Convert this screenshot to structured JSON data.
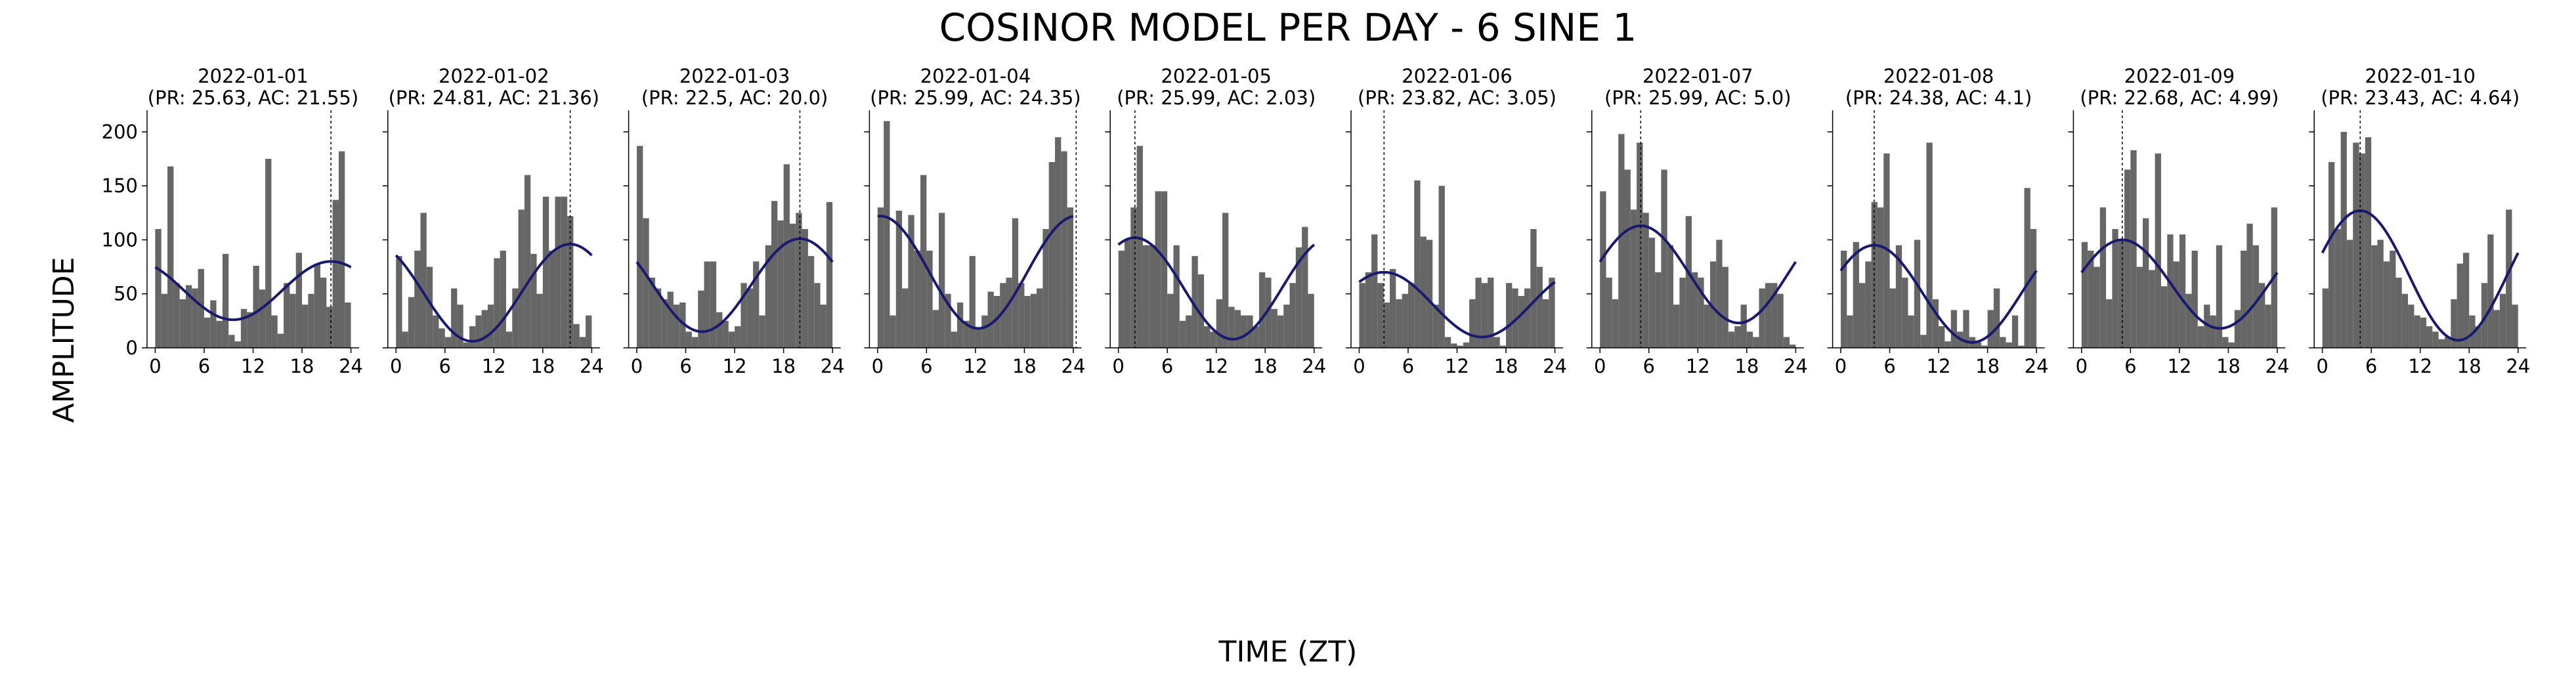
{
  "figure": {
    "title": "COSINOR MODEL PER DAY - 6 SINE 1",
    "xlabel": "TIME (ZT)",
    "ylabel": "AMPLITUDE"
  },
  "colors": {
    "bar": "#666666",
    "curve": "#191970",
    "axis": "#000000"
  },
  "chart_data": {
    "type": "bar",
    "bar_width_hours": 0.75,
    "xlim": [
      -1,
      25
    ],
    "ylim": [
      0,
      220
    ],
    "xticks": [
      0,
      6,
      12,
      18,
      24
    ],
    "yticks": [
      0,
      50,
      100,
      150,
      200
    ],
    "panels": [
      {
        "date": "2022-01-01",
        "subtitle": "(PR: 25.63, AC: 21.55)",
        "acrophase": 21.55,
        "mesor": 53,
        "amplitude": 27,
        "values": [
          110,
          50,
          168,
          60,
          45,
          58,
          55,
          73,
          28,
          44,
          25,
          87,
          12,
          6,
          36,
          33,
          76,
          54,
          175,
          30,
          13,
          60,
          50,
          88,
          40,
          50,
          78,
          65,
          38,
          137,
          182,
          42
        ]
      },
      {
        "date": "2022-01-02",
        "subtitle": "(PR: 24.81, AC: 21.36)",
        "acrophase": 21.36,
        "mesor": 51,
        "amplitude": 45,
        "values": [
          85,
          15,
          47,
          90,
          125,
          75,
          30,
          18,
          10,
          55,
          40,
          5,
          20,
          30,
          35,
          40,
          83,
          90,
          15,
          55,
          128,
          160,
          87,
          50,
          140,
          90,
          140,
          140,
          122,
          22,
          10,
          30
        ]
      },
      {
        "date": "2022-01-03",
        "subtitle": "(PR: 22.5, AC: 20.0)",
        "acrophase": 20.0,
        "mesor": 58,
        "amplitude": 43,
        "values": [
          187,
          120,
          65,
          55,
          45,
          52,
          40,
          42,
          15,
          10,
          53,
          80,
          80,
          33,
          25,
          15,
          20,
          60,
          55,
          80,
          30,
          95,
          136,
          118,
          170,
          115,
          125,
          110,
          85,
          60,
          40,
          135
        ]
      },
      {
        "date": "2022-01-04",
        "subtitle": "(PR: 25.99, AC: 24.35)",
        "acrophase": 24.35,
        "mesor": 70,
        "amplitude": 52,
        "values": [
          130,
          210,
          30,
          127,
          55,
          123,
          90,
          160,
          90,
          35,
          125,
          50,
          15,
          42,
          25,
          85,
          18,
          30,
          52,
          48,
          60,
          65,
          120,
          60,
          48,
          50,
          55,
          110,
          172,
          195,
          182,
          130
        ]
      },
      {
        "date": "2022-01-05",
        "subtitle": "(PR: 25.99, AC: 2.03)",
        "acrophase": 2.03,
        "mesor": 55,
        "amplitude": 47,
        "values": [
          90,
          100,
          130,
          187,
          95,
          95,
          145,
          145,
          50,
          95,
          25,
          30,
          85,
          68,
          20,
          15,
          45,
          125,
          38,
          35,
          30,
          30,
          20,
          70,
          65,
          36,
          30,
          40,
          60,
          93,
          112,
          50
        ]
      },
      {
        "date": "2022-01-06",
        "subtitle": "(PR: 23.82, AC: 3.05)",
        "acrophase": 3.05,
        "mesor": 40,
        "amplitude": 30,
        "values": [
          60,
          70,
          105,
          60,
          42,
          73,
          45,
          50,
          60,
          155,
          103,
          100,
          40,
          150,
          10,
          4,
          2,
          5,
          45,
          65,
          60,
          65,
          10,
          2,
          60,
          55,
          48,
          55,
          110,
          75,
          45,
          65
        ]
      },
      {
        "date": "2022-01-07",
        "subtitle": "(PR: 25.99, AC: 5.0)",
        "acrophase": 5.0,
        "mesor": 68,
        "amplitude": 45,
        "values": [
          145,
          65,
          45,
          198,
          165,
          128,
          190,
          125,
          102,
          70,
          165,
          95,
          40,
          65,
          122,
          70,
          65,
          40,
          80,
          100,
          75,
          15,
          20,
          40,
          15,
          10,
          55,
          60,
          60,
          50,
          10,
          3
        ]
      },
      {
        "date": "2022-01-08",
        "subtitle": "(PR: 24.38, AC: 4.1)",
        "acrophase": 4.1,
        "mesor": 50,
        "amplitude": 45,
        "values": [
          90,
          30,
          98,
          60,
          80,
          135,
          130,
          180,
          55,
          95,
          65,
          30,
          100,
          12,
          190,
          45,
          20,
          6,
          35,
          15,
          35,
          10,
          5,
          2,
          35,
          55,
          10,
          5,
          30,
          2,
          148,
          110
        ]
      },
      {
        "date": "2022-01-09",
        "subtitle": "(PR: 22.68, AC: 4.99)",
        "acrophase": 4.99,
        "mesor": 59,
        "amplitude": 41,
        "values": [
          98,
          90,
          75,
          130,
          45,
          110,
          100,
          165,
          183,
          75,
          120,
          72,
          180,
          57,
          105,
          80,
          105,
          50,
          90,
          20,
          40,
          30,
          95,
          10,
          5,
          35,
          90,
          115,
          95,
          60,
          40,
          130
        ]
      },
      {
        "date": "2022-01-10",
        "subtitle": "(PR: 23.43, AC: 4.64)",
        "acrophase": 4.64,
        "mesor": 67,
        "amplitude": 60,
        "values": [
          55,
          172,
          110,
          200,
          100,
          190,
          180,
          195,
          95,
          100,
          80,
          90,
          65,
          50,
          40,
          30,
          28,
          20,
          15,
          8,
          10,
          45,
          78,
          88,
          30,
          20,
          60,
          105,
          35,
          50,
          128,
          40
        ]
      }
    ]
  }
}
